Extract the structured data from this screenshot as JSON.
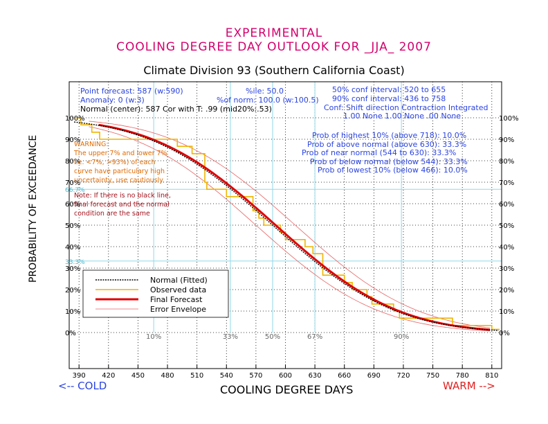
{
  "titles": {
    "line1": "EXPERIMENTAL",
    "line2": "COOLING DEGREE DAY OUTLOOK FOR _JJA_ 2007",
    "division": "Climate Division 93 (Southern California Coast)"
  },
  "info": {
    "point_forecast": "Point forecast: 587 (w:590)",
    "anomaly": "Anomaly: 0 (w:3)",
    "normal_center": "Normal (center): 587   Cor with T: .99 (mid20%:.53)",
    "ile": "%ile: 50.0",
    "pct_norm": "%of norm:  100.0 (w:100.5)",
    "conf50": "50% conf interval: 520 to 655",
    "conf90": "90% conf interval: 436 to 758",
    "conf_header": "Conf: Shift direction   Contraction   Integrated",
    "conf_values": "1.00  None       1.00  None    .00  None",
    "prob_highest": "Prob of highest 10% (above 718): 10.0%",
    "prob_above": "Prob of above normal (above 630): 33.3%",
    "prob_near": "Prob of near normal (544 to 630): 33.3%",
    "prob_below": "Prob of below normal (below 544): 33.3%",
    "prob_lowest": "Prob of lowest 10% (below 466): 10.0%"
  },
  "warning": {
    "lines": [
      "WARNING:",
      "The upper 7% and lower 7%",
      "i.e. <7%, >93%) of each",
      "curve have particulary high",
      "uncertainty, use cautiously."
    ]
  },
  "note": {
    "lines": [
      "Note: If there is no black line,",
      "final forecast and  the normal",
      "condition are the same"
    ]
  },
  "axes": {
    "ylabel": "PROBABILITY OF EXCEEDANCE",
    "xlabel": "COOLING DEGREE DAYS",
    "cold_label": "<-- COLD",
    "warm_label": "WARM -->"
  },
  "colors": {
    "normal": "#000000",
    "observed": "#f0b400",
    "forecast": "#e00000",
    "envelope": "#e86060",
    "grid_cyan": "#8fd8e8",
    "title": "#d4006e"
  },
  "chart_data": {
    "type": "line",
    "xlim": [
      380,
      820
    ],
    "ylim": [
      0,
      100
    ],
    "x_ticks": [
      390,
      420,
      450,
      480,
      510,
      540,
      570,
      600,
      630,
      660,
      690,
      720,
      750,
      780,
      810
    ],
    "y_ticks_left": [
      "0%",
      "10%",
      "20%",
      "30%",
      "40%",
      "50%",
      "60%",
      "70%",
      "80%",
      "90%",
      "100%"
    ],
    "y_ticks_right": [
      "0%",
      "10%",
      "20%",
      "30%",
      "40%",
      "50%",
      "60%",
      "70%",
      "80%",
      "90%",
      "100%"
    ],
    "y_cyan_labels": [
      {
        "label": "66.7%",
        "y": 66.7
      },
      {
        "label": "33.3%",
        "y": 33.3
      }
    ],
    "cyan_lines_y": [
      66.7,
      33.3
    ],
    "cyan_lines_x": [
      466,
      544,
      587,
      630,
      718
    ],
    "percentile_labels": [
      {
        "label": "10%",
        "x": 466
      },
      {
        "label": "33%",
        "x": 544
      },
      {
        "label": "50%",
        "x": 587
      },
      {
        "label": "67%",
        "x": 630
      },
      {
        "label": "90%",
        "x": 718
      }
    ],
    "normal": {
      "mean": 587,
      "sd": 98
    },
    "forecast": {
      "mean": 590,
      "sd": 98
    },
    "envelope": [
      {
        "mean": 570,
        "sd": 98
      },
      {
        "mean": 610,
        "sd": 98
      }
    ],
    "normal_range": [
      385,
      818
    ],
    "forecast_range": [
      410,
      808
    ],
    "observed_steps": [
      [
        385,
        100
      ],
      [
        392,
        100
      ],
      [
        392,
        96.7
      ],
      [
        403,
        96.7
      ],
      [
        403,
        93.3
      ],
      [
        411,
        93.3
      ],
      [
        411,
        90
      ],
      [
        490,
        90
      ],
      [
        490,
        86.7
      ],
      [
        505,
        86.7
      ],
      [
        505,
        83.3
      ],
      [
        518,
        83.3
      ],
      [
        518,
        70
      ],
      [
        520,
        70
      ],
      [
        520,
        66.7
      ],
      [
        540,
        66.7
      ],
      [
        540,
        63.3
      ],
      [
        567,
        63.3
      ],
      [
        567,
        56.7
      ],
      [
        573,
        56.7
      ],
      [
        573,
        53.3
      ],
      [
        578,
        53.3
      ],
      [
        578,
        50
      ],
      [
        595,
        50
      ],
      [
        595,
        46.7
      ],
      [
        600,
        46.7
      ],
      [
        600,
        43.3
      ],
      [
        620,
        43.3
      ],
      [
        620,
        40
      ],
      [
        628,
        40
      ],
      [
        628,
        36.7
      ],
      [
        638,
        36.7
      ],
      [
        638,
        26.7
      ],
      [
        660,
        26.7
      ],
      [
        660,
        23.3
      ],
      [
        668,
        23.3
      ],
      [
        668,
        20
      ],
      [
        683,
        20
      ],
      [
        683,
        16.7
      ],
      [
        688,
        16.7
      ],
      [
        688,
        13.3
      ],
      [
        710,
        13.3
      ],
      [
        710,
        10
      ],
      [
        716,
        10
      ],
      [
        716,
        6.7
      ],
      [
        770,
        6.7
      ],
      [
        770,
        3.3
      ],
      [
        798,
        3.3
      ],
      [
        810,
        3.3
      ],
      [
        810,
        1.5
      ],
      [
        818,
        1.5
      ]
    ],
    "legend": [
      {
        "label": "Normal (Fitted)",
        "key": "normal"
      },
      {
        "label": "Observed data",
        "key": "observed"
      },
      {
        "label": "Final Forecast",
        "key": "forecast"
      },
      {
        "label": "Error Envelope",
        "key": "envelope"
      }
    ]
  }
}
